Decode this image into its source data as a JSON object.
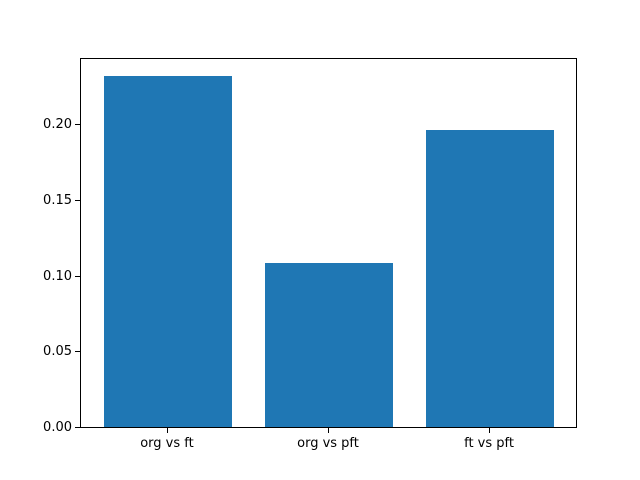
{
  "chart_data": {
    "type": "bar",
    "categories": [
      "org vs ft",
      "org vs pft",
      "ft vs pft"
    ],
    "values": [
      0.232,
      0.108,
      0.196
    ],
    "title": "",
    "xlabel": "",
    "ylabel": "",
    "ylim": [
      0,
      0.2436
    ],
    "yticks": [
      0.0,
      0.05,
      0.1,
      0.15,
      0.2
    ],
    "ytick_labels": [
      "0.00",
      "0.05",
      "0.10",
      "0.15",
      "0.20"
    ],
    "bar_color": "#1f77b4",
    "grid": false,
    "legend": false
  }
}
